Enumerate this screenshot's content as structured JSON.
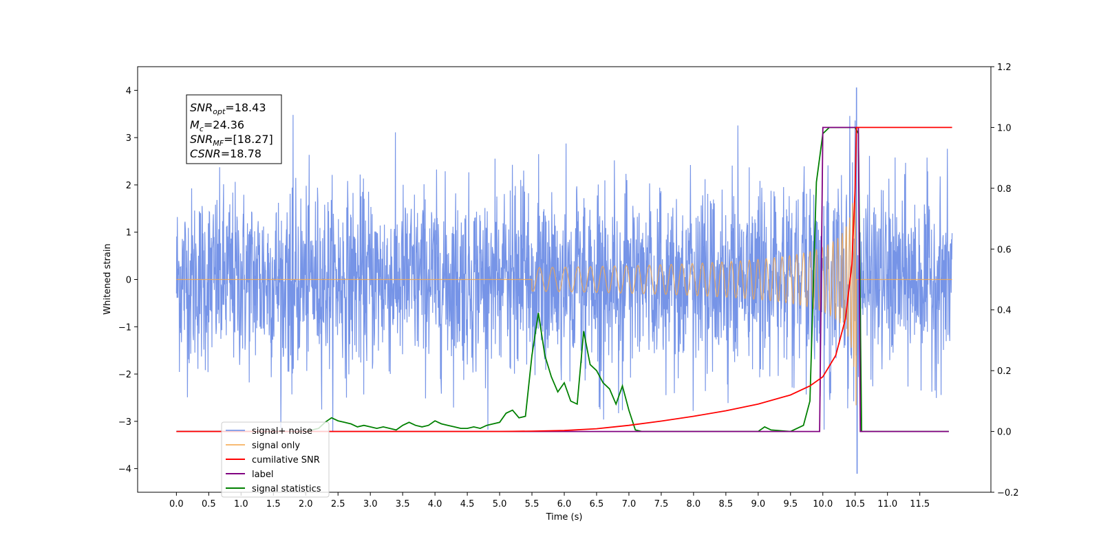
{
  "chart_data": {
    "type": "line",
    "xlabel": "Time (s)",
    "ylabel": "Whitened strain",
    "xlim": [
      -0.6,
      12.6
    ],
    "ylim": [
      -4.5,
      4.5
    ],
    "y2lim": [
      -0.2,
      1.2
    ],
    "x_ticks": [
      "0.0",
      "0.5",
      "1.0",
      "1.5",
      "2.0",
      "2.5",
      "3.0",
      "3.5",
      "4.0",
      "4.5",
      "5.0",
      "5.5",
      "6.0",
      "6.5",
      "7.0",
      "7.5",
      "8.0",
      "8.5",
      "9.0",
      "9.5",
      "10.0",
      "10.5",
      "11.0",
      "11.5"
    ],
    "y_ticks": [
      "4",
      "3",
      "2",
      "1",
      "0",
      "−1",
      "−2",
      "−3",
      "−4"
    ],
    "y2_ticks": [
      "1.2",
      "1.0",
      "0.8",
      "0.6",
      "0.4",
      "0.2",
      "0.0",
      "−0.2"
    ],
    "grid": false,
    "legend_position": "lower-left",
    "annotation": {
      "snr_opt": "=18.43",
      "mc": "=24.36",
      "snr_mf": "=[18.27]",
      "csnr": "=18.78"
    },
    "series": [
      {
        "name": "signal+ noise",
        "color": "#6f8ee6",
        "axis": "left",
        "description_values": {
          "x_range": [
            0,
            12
          ],
          "amplitude_typical": 2.3,
          "peak": 4.05,
          "peak_x": 10.52,
          "min": -4.1,
          "min_x": 10.52
        }
      },
      {
        "name": "signal only",
        "color": "#f5a94f",
        "axis": "left",
        "chirp": {
          "start_visible": 6.0,
          "merger": 10.52,
          "peak_amplitude": 3.0
        }
      },
      {
        "name": "cumilative SNR",
        "color": "#ff0000",
        "axis": "right",
        "x": [
          0,
          5.0,
          5.5,
          6.0,
          6.5,
          7.0,
          7.5,
          8.0,
          8.5,
          9.0,
          9.5,
          9.8,
          10.0,
          10.2,
          10.35,
          10.45,
          10.5,
          10.52,
          10.55,
          11.0,
          11.5,
          12.0
        ],
        "y": [
          0,
          0.0,
          0.001,
          0.003,
          0.009,
          0.02,
          0.034,
          0.05,
          0.068,
          0.09,
          0.12,
          0.15,
          0.18,
          0.25,
          0.37,
          0.55,
          0.8,
          1.0,
          1.0,
          1.0,
          1.0,
          1.0
        ]
      },
      {
        "name": "label",
        "color": "#800080",
        "axis": "right",
        "x": [
          0,
          9.95,
          10.0,
          10.55,
          10.58,
          11.95
        ],
        "y": [
          0,
          0,
          1.0,
          1.0,
          0,
          0
        ]
      },
      {
        "name": "signal statistics",
        "color": "#008000",
        "axis": "right",
        "x": [
          0,
          2.0,
          2.2,
          2.3,
          2.4,
          2.5,
          2.6,
          2.7,
          2.8,
          2.9,
          3.0,
          3.1,
          3.2,
          3.3,
          3.4,
          3.5,
          3.6,
          3.7,
          3.8,
          3.9,
          4.0,
          4.1,
          4.2,
          4.3,
          4.4,
          4.5,
          4.6,
          4.7,
          4.8,
          4.9,
          5.0,
          5.1,
          5.2,
          5.3,
          5.4,
          5.5,
          5.6,
          5.7,
          5.8,
          5.9,
          6.0,
          6.1,
          6.2,
          6.3,
          6.4,
          6.5,
          6.6,
          6.7,
          6.8,
          6.9,
          7.0,
          7.1,
          7.2,
          7.5,
          8.0,
          8.5,
          9.0,
          9.1,
          9.2,
          9.5,
          9.7,
          9.8,
          9.9,
          10.0,
          10.1,
          10.2,
          10.4,
          10.5,
          10.55,
          10.6,
          11.0,
          11.95
        ],
        "y": [
          0,
          0,
          0.01,
          0.03,
          0.045,
          0.035,
          0.03,
          0.025,
          0.015,
          0.02,
          0.015,
          0.01,
          0.015,
          0.01,
          0.005,
          0.02,
          0.03,
          0.02,
          0.015,
          0.02,
          0.035,
          0.025,
          0.02,
          0.015,
          0.01,
          0.01,
          0.015,
          0.01,
          0.02,
          0.025,
          0.03,
          0.06,
          0.07,
          0.045,
          0.05,
          0.25,
          0.39,
          0.25,
          0.18,
          0.13,
          0.16,
          0.1,
          0.09,
          0.33,
          0.22,
          0.2,
          0.16,
          0.14,
          0.09,
          0.15,
          0.07,
          0.005,
          0.0,
          0.0,
          0.0,
          0.0,
          0.0,
          0.015,
          0.005,
          0.0,
          0.02,
          0.1,
          0.82,
          0.98,
          1.0,
          1.0,
          1.0,
          1.0,
          0.98,
          0.0,
          0.0,
          0.0
        ]
      }
    ]
  }
}
